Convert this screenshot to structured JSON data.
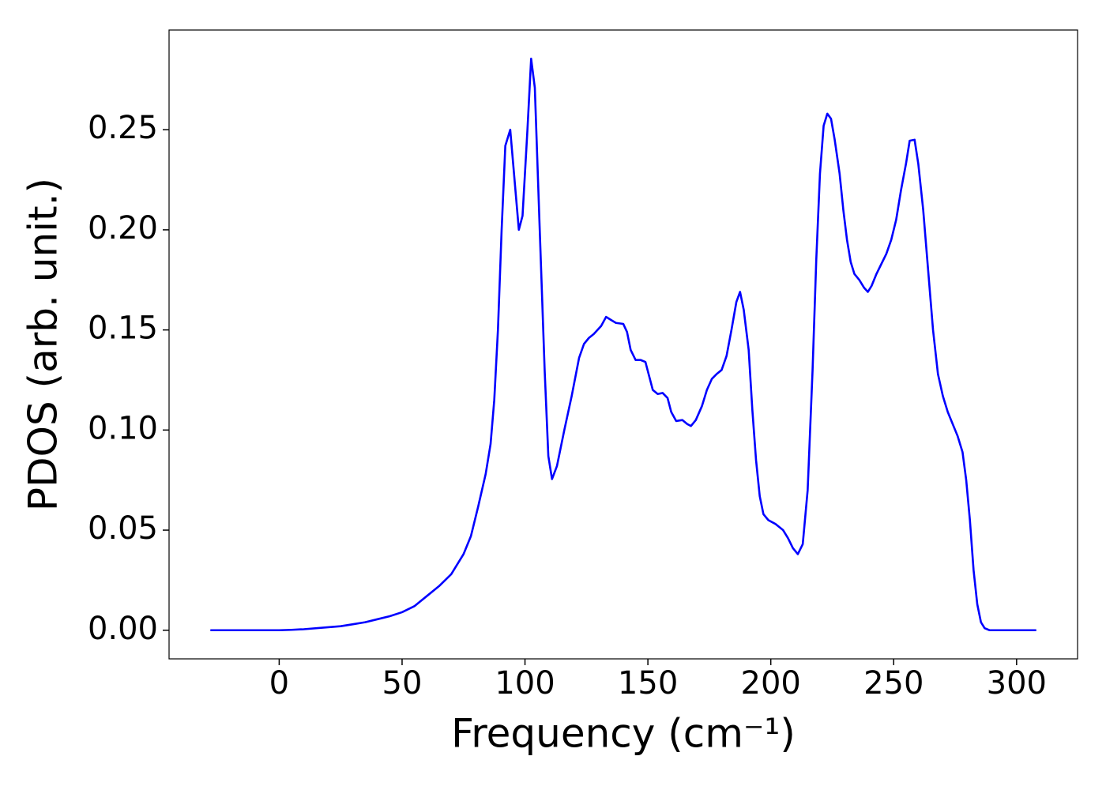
{
  "chart_data": {
    "type": "line",
    "xlabel": "Frequency (cm⁻¹)",
    "ylabel": "PDOS (arb. unit.)",
    "xlim": [
      -44.8,
      324.8
    ],
    "ylim": [
      -0.0143,
      0.2998
    ],
    "xticks": [
      0,
      50,
      100,
      150,
      200,
      250,
      300
    ],
    "yticks": [
      {
        "value": 0,
        "label": "0.00"
      },
      {
        "value": 0.05,
        "label": "0.05"
      },
      {
        "value": 0.1,
        "label": "0.10"
      },
      {
        "value": 0.15,
        "label": "0.15"
      },
      {
        "value": 0.2,
        "label": "0.20"
      },
      {
        "value": 0.25,
        "label": "0.25"
      }
    ],
    "grid": false,
    "x": [
      -28,
      -10,
      0,
      5,
      10,
      20,
      25,
      30,
      35,
      40,
      45,
      50,
      55,
      60,
      65,
      70,
      75,
      78,
      81,
      84,
      86,
      87.5,
      89,
      90.5,
      92,
      94,
      97.5,
      99,
      101,
      102.5,
      104,
      106,
      108,
      109.5,
      111,
      113,
      116,
      119,
      122,
      124,
      126,
      128,
      131,
      133,
      135,
      137,
      140,
      141.5,
      143,
      145,
      147,
      149,
      150.5,
      152,
      154,
      156,
      158,
      159.5,
      161.5,
      164,
      166,
      167.5,
      169.5,
      172,
      174,
      176,
      178,
      180,
      182,
      184,
      186,
      187.5,
      189,
      191,
      192.5,
      194,
      195.5,
      197,
      199,
      202,
      205,
      207,
      209,
      211,
      213,
      215,
      217,
      218.5,
      220,
      221.5,
      223,
      224.5,
      226,
      228,
      229.5,
      231,
      232.5,
      234,
      236,
      238,
      239.5,
      241,
      243,
      245,
      247,
      249,
      251,
      253,
      255,
      256.5,
      258.5,
      260,
      262,
      264,
      266,
      268,
      270,
      272,
      274,
      276,
      278,
      279.5,
      281,
      282.5,
      284,
      285.5,
      287,
      289,
      300,
      308
    ],
    "series": [
      {
        "color": "#0000ff",
        "values": [
          0,
          0,
          0,
          0.0002,
          0.0005,
          0.0015,
          0.002,
          0.003,
          0.004,
          0.0055,
          0.007,
          0.009,
          0.012,
          0.017,
          0.022,
          0.028,
          0.038,
          0.047,
          0.062,
          0.078,
          0.093,
          0.115,
          0.15,
          0.2,
          0.242,
          0.25,
          0.2,
          0.207,
          0.25,
          0.2855,
          0.271,
          0.2,
          0.13,
          0.087,
          0.0755,
          0.082,
          0.1,
          0.117,
          0.136,
          0.143,
          0.146,
          0.148,
          0.152,
          0.1565,
          0.155,
          0.1535,
          0.153,
          0.149,
          0.14,
          0.135,
          0.135,
          0.134,
          0.127,
          0.12,
          0.118,
          0.1185,
          0.116,
          0.109,
          0.1045,
          0.105,
          0.103,
          0.102,
          0.105,
          0.112,
          0.12,
          0.1255,
          0.128,
          0.13,
          0.137,
          0.15,
          0.164,
          0.169,
          0.16,
          0.14,
          0.11,
          0.085,
          0.067,
          0.058,
          0.055,
          0.053,
          0.05,
          0.046,
          0.041,
          0.038,
          0.043,
          0.07,
          0.13,
          0.185,
          0.228,
          0.252,
          0.258,
          0.2555,
          0.245,
          0.228,
          0.21,
          0.195,
          0.184,
          0.178,
          0.175,
          0.171,
          0.169,
          0.172,
          0.178,
          0.183,
          0.188,
          0.195,
          0.205,
          0.22,
          0.233,
          0.2445,
          0.245,
          0.233,
          0.21,
          0.18,
          0.15,
          0.128,
          0.117,
          0.109,
          0.103,
          0.097,
          0.089,
          0.075,
          0.055,
          0.03,
          0.013,
          0.004,
          0.001,
          0,
          0,
          0
        ]
      }
    ]
  }
}
